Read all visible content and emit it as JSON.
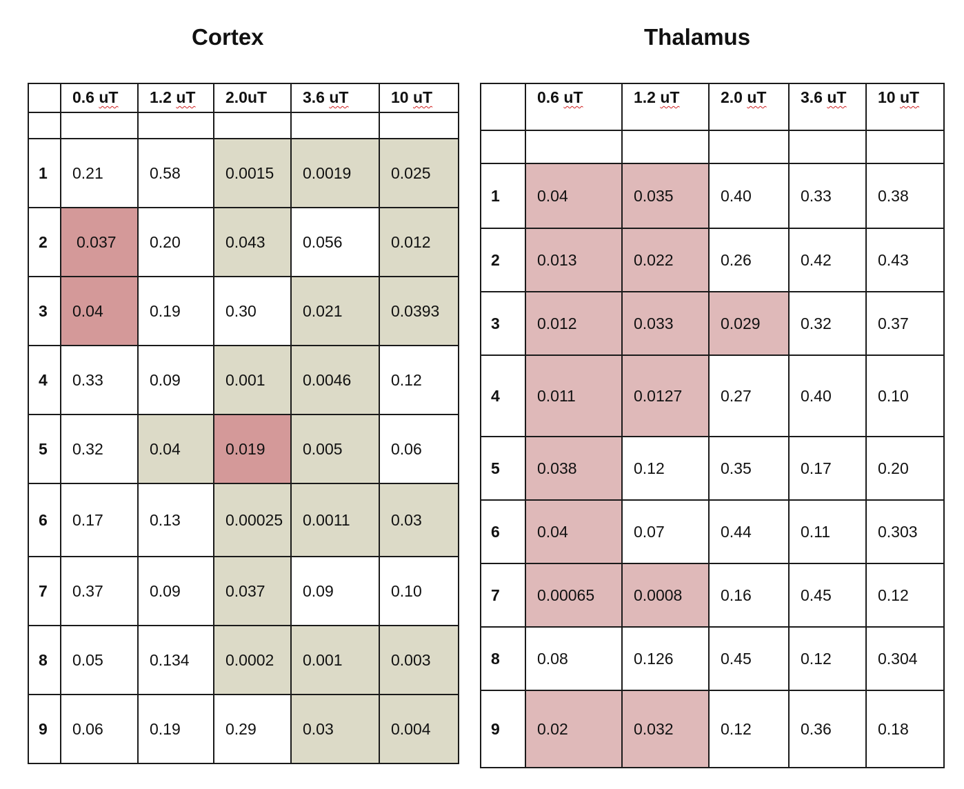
{
  "cortex": {
    "title": "Cortex",
    "headers": [
      {
        "num": "0.6",
        "unit": "uT"
      },
      {
        "num": "1.2",
        "unit": "uT"
      },
      {
        "num": "2.0uT",
        "unit": ""
      },
      {
        "num": "3.6",
        "unit": "uT"
      },
      {
        "num": "10",
        "unit": "uT"
      }
    ],
    "rows": [
      {
        "label": "1",
        "cells": [
          {
            "v": "0.21",
            "h": ""
          },
          {
            "v": "0.58",
            "h": ""
          },
          {
            "v": "0.0015",
            "h": "tan"
          },
          {
            "v": "0.0019",
            "h": "tan"
          },
          {
            "v": "0.025",
            "h": "tan"
          }
        ]
      },
      {
        "label": "2",
        "cells": [
          {
            "v": "0.037",
            "h": "red"
          },
          {
            "v": "0.20",
            "h": ""
          },
          {
            "v": "0.043",
            "h": "tan"
          },
          {
            "v": "0.056",
            "h": ""
          },
          {
            "v": "0.012",
            "h": "tan"
          }
        ]
      },
      {
        "label": "3",
        "cells": [
          {
            "v": "0.04",
            "h": "red"
          },
          {
            "v": "0.19",
            "h": ""
          },
          {
            "v": "0.30",
            "h": ""
          },
          {
            "v": "0.021",
            "h": "tan"
          },
          {
            "v": "0.0393",
            "h": "tan"
          }
        ]
      },
      {
        "label": "4",
        "cells": [
          {
            "v": "0.33",
            "h": ""
          },
          {
            "v": "0.09",
            "h": ""
          },
          {
            "v": "0.001",
            "h": "tan"
          },
          {
            "v": "0.0046",
            "h": "tan"
          },
          {
            "v": "0.12",
            "h": ""
          }
        ]
      },
      {
        "label": "5",
        "cells": [
          {
            "v": "0.32",
            "h": ""
          },
          {
            "v": "0.04",
            "h": "tan"
          },
          {
            "v": "0.019",
            "h": "red"
          },
          {
            "v": "0.005",
            "h": "tan"
          },
          {
            "v": "0.06",
            "h": ""
          }
        ]
      },
      {
        "label": "6",
        "cells": [
          {
            "v": "0.17",
            "h": ""
          },
          {
            "v": "0.13",
            "h": ""
          },
          {
            "v": "0.00025",
            "h": "tan"
          },
          {
            "v": "0.0011",
            "h": "tan"
          },
          {
            "v": "0.03",
            "h": "tan"
          }
        ]
      },
      {
        "label": "7",
        "cells": [
          {
            "v": "0.37",
            "h": ""
          },
          {
            "v": "0.09",
            "h": ""
          },
          {
            "v": "0.037",
            "h": "tan"
          },
          {
            "v": "0.09",
            "h": ""
          },
          {
            "v": "0.10",
            "h": ""
          }
        ]
      },
      {
        "label": "8",
        "cells": [
          {
            "v": "0.05",
            "h": ""
          },
          {
            "v": "0.134",
            "h": ""
          },
          {
            "v": "0.0002",
            "h": "tan"
          },
          {
            "v": "0.001",
            "h": "tan"
          },
          {
            "v": "0.003",
            "h": "tan"
          }
        ]
      },
      {
        "label": "9",
        "cells": [
          {
            "v": "0.06",
            "h": ""
          },
          {
            "v": "0.19",
            "h": ""
          },
          {
            "v": "0.29",
            "h": ""
          },
          {
            "v": "0.03",
            "h": "tan"
          },
          {
            "v": "0.004",
            "h": "tan"
          }
        ]
      }
    ]
  },
  "thalamus": {
    "title": "Thalamus",
    "headers": [
      {
        "num": "0.6",
        "unit": "uT"
      },
      {
        "num": "1.2",
        "unit": "uT"
      },
      {
        "num": "2.0",
        "unit": "uT"
      },
      {
        "num": "3.6",
        "unit": "uT"
      },
      {
        "num": "10",
        "unit": "uT"
      }
    ],
    "rows": [
      {
        "label": "1",
        "cells": [
          {
            "v": "0.04",
            "h": "pink"
          },
          {
            "v": "0.035",
            "h": "pink"
          },
          {
            "v": "0.40",
            "h": ""
          },
          {
            "v": "0.33",
            "h": ""
          },
          {
            "v": "0.38",
            "h": ""
          }
        ]
      },
      {
        "label": "2",
        "cells": [
          {
            "v": "0.013",
            "h": "pink"
          },
          {
            "v": "0.022",
            "h": "pink"
          },
          {
            "v": "0.26",
            "h": ""
          },
          {
            "v": "0.42",
            "h": ""
          },
          {
            "v": "0.43",
            "h": ""
          }
        ]
      },
      {
        "label": "3",
        "cells": [
          {
            "v": "0.012",
            "h": "pink"
          },
          {
            "v": "0.033",
            "h": "pink"
          },
          {
            "v": "0.029",
            "h": "pink"
          },
          {
            "v": "0.32",
            "h": ""
          },
          {
            "v": "0.37",
            "h": ""
          }
        ]
      },
      {
        "label": "4",
        "cells": [
          {
            "v": "0.011",
            "h": "pink"
          },
          {
            "v": "0.0127",
            "h": "pink"
          },
          {
            "v": "0.27",
            "h": ""
          },
          {
            "v": "0.40",
            "h": ""
          },
          {
            "v": "0.10",
            "h": ""
          }
        ]
      },
      {
        "label": "5",
        "cells": [
          {
            "v": "0.038",
            "h": "pink"
          },
          {
            "v": "0.12",
            "h": ""
          },
          {
            "v": "0.35",
            "h": ""
          },
          {
            "v": "0.17",
            "h": ""
          },
          {
            "v": "0.20",
            "h": ""
          }
        ]
      },
      {
        "label": "6",
        "cells": [
          {
            "v": "0.04",
            "h": "pink"
          },
          {
            "v": "0.07",
            "h": ""
          },
          {
            "v": "0.44",
            "h": ""
          },
          {
            "v": "0.11",
            "h": ""
          },
          {
            "v": "0.303",
            "h": ""
          }
        ]
      },
      {
        "label": "7",
        "cells": [
          {
            "v": "0.00065",
            "h": "pink"
          },
          {
            "v": "0.0008",
            "h": "pink"
          },
          {
            "v": "0.16",
            "h": ""
          },
          {
            "v": "0.45",
            "h": ""
          },
          {
            "v": "0.12",
            "h": ""
          }
        ]
      },
      {
        "label": "8",
        "cells": [
          {
            "v": "0.08",
            "h": ""
          },
          {
            "v": "0.126",
            "h": ""
          },
          {
            "v": "0.45",
            "h": ""
          },
          {
            "v": "0.12",
            "h": ""
          },
          {
            "v": "0.304",
            "h": ""
          }
        ]
      },
      {
        "label": "9",
        "cells": [
          {
            "v": "0.02",
            "h": "pink"
          },
          {
            "v": "0.032",
            "h": "pink"
          },
          {
            "v": "0.12",
            "h": ""
          },
          {
            "v": "0.36",
            "h": ""
          },
          {
            "v": "0.18",
            "h": ""
          }
        ]
      }
    ]
  }
}
